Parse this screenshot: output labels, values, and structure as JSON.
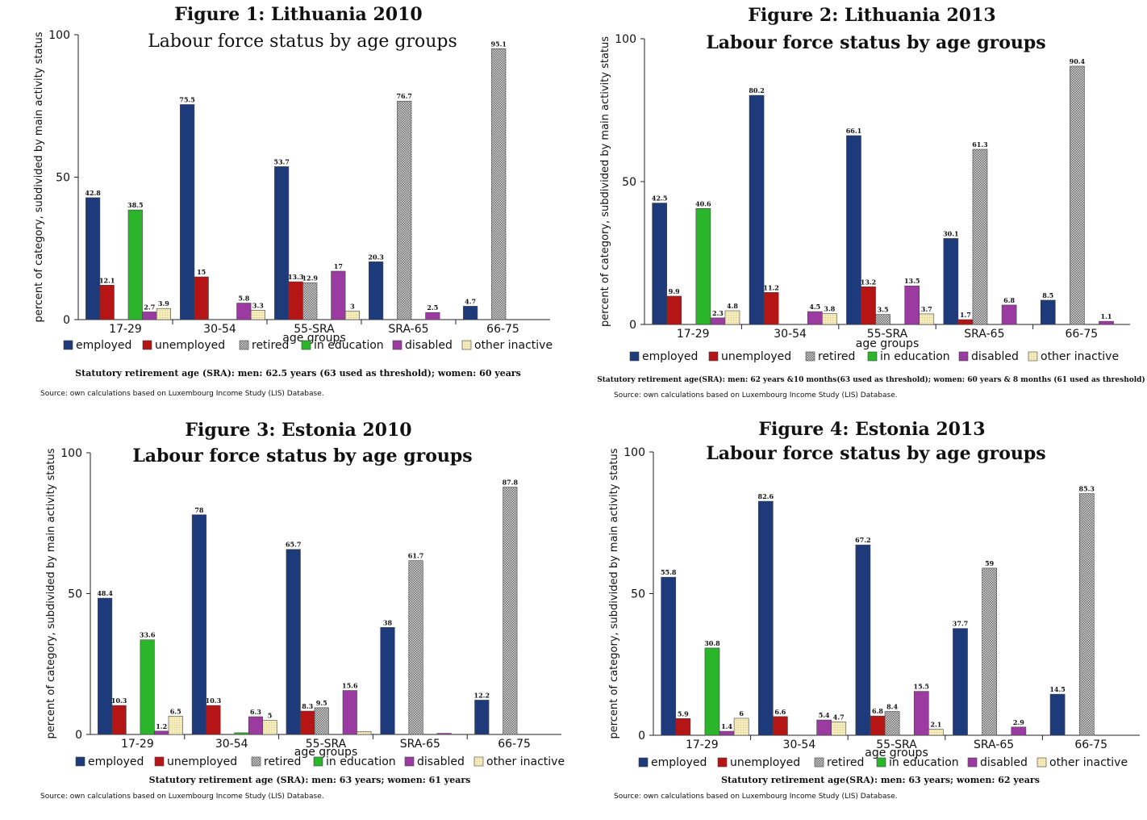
{
  "legend": [
    "employed",
    "unemployed",
    "retired",
    "in education",
    "disabled",
    "other inactive"
  ],
  "colors": [
    "#1d3a7a",
    "#b51515",
    "#9a9a9a",
    "#2bb52b",
    "#9b3aa0",
    "#f3e8b0"
  ],
  "chart_data": [
    {
      "type": "bar",
      "title": "Figure 1: Lithuania 2010",
      "subtitle": "Labour force status by age groups",
      "xlabel": "age groups",
      "ylabel": "percent of category, subdivided by main activity status",
      "ylim": [
        0,
        100
      ],
      "yticks": [
        "0",
        "50",
        "100"
      ],
      "categories": [
        "17-29",
        "30-54",
        "55-SRA",
        "SRA-65",
        "66-75"
      ],
      "series": [
        {
          "name": "employed",
          "values": [
            42.8,
            75.5,
            53.7,
            20.3,
            4.7
          ],
          "labels": [
            "42.8",
            "75.5",
            "53.7",
            "20.3",
            "4.7"
          ]
        },
        {
          "name": "unemployed",
          "values": [
            12.1,
            15,
            13.3,
            0,
            0
          ],
          "labels": [
            "12.1",
            "15",
            "13.3",
            "",
            ""
          ]
        },
        {
          "name": "retired",
          "values": [
            0,
            0,
            12.9,
            76.7,
            95.1
          ],
          "labels": [
            "",
            "",
            "12.9",
            "76.7",
            "95.1"
          ]
        },
        {
          "name": "in education",
          "values": [
            38.5,
            0,
            0,
            0,
            0
          ],
          "labels": [
            "38.5",
            "",
            "",
            "",
            ""
          ]
        },
        {
          "name": "disabled",
          "values": [
            2.7,
            5.8,
            17,
            2.5,
            0
          ],
          "labels": [
            "2.7",
            "5.8",
            "17",
            "2.5",
            ""
          ]
        },
        {
          "name": "other inactive",
          "values": [
            3.9,
            3.3,
            3,
            0,
            0
          ],
          "labels": [
            "3.9",
            "3.3",
            "3",
            "",
            ""
          ]
        }
      ],
      "note": "Statutory retirement age (SRA): men: 62.5 years (63 used as threshold); women: 60 years",
      "source": "Source: own calculations based on Luxembourg Income Study (LIS) Database."
    },
    {
      "type": "bar",
      "title": "Figure 2: Lithuania 2013",
      "subtitle": "Labour force status by age groups",
      "xlabel": "age groups",
      "ylabel": "percent of category, subdivided by main activity status",
      "ylim": [
        0,
        100
      ],
      "yticks": [
        "0",
        "50",
        "100"
      ],
      "categories": [
        "17-29",
        "30-54",
        "55-SRA",
        "SRA-65",
        "66-75"
      ],
      "series": [
        {
          "name": "employed",
          "values": [
            42.5,
            80.2,
            66.1,
            30.1,
            8.5
          ],
          "labels": [
            "42.5",
            "80.2",
            "66.1",
            "30.1",
            "8.5"
          ]
        },
        {
          "name": "unemployed",
          "values": [
            9.9,
            11.2,
            13.2,
            1.7,
            0
          ],
          "labels": [
            "9.9",
            "11.2",
            "13.2",
            "1.7",
            ""
          ]
        },
        {
          "name": "retired",
          "values": [
            0,
            0,
            3.5,
            61.3,
            90.4
          ],
          "labels": [
            "",
            "",
            "3.5",
            "61.3",
            "90.4"
          ]
        },
        {
          "name": "in education",
          "values": [
            40.6,
            0,
            0,
            0,
            0
          ],
          "labels": [
            "40.6",
            "",
            "",
            "",
            ""
          ]
        },
        {
          "name": "disabled",
          "values": [
            2.3,
            4.5,
            13.5,
            6.8,
            1.1
          ],
          "labels": [
            "2.3",
            "4.5",
            "13.5",
            "6.8",
            "1.1"
          ]
        },
        {
          "name": "other inactive",
          "values": [
            4.8,
            3.8,
            3.7,
            0,
            0
          ],
          "labels": [
            "4.8",
            "3.8",
            "3.7",
            "",
            ""
          ]
        }
      ],
      "note": "Statutory retirement age(SRA): men: 62 years &10 months(63 used as threshold); women: 60 years & 8 months (61 used as threshold)",
      "source": "Source: own calculations based on Luxembourg Income Study (LIS) Database."
    },
    {
      "type": "bar",
      "title": "Figure 3: Estonia 2010",
      "subtitle": "Labour force status by age groups",
      "xlabel": "age groups",
      "ylabel": "percent of category, subdivided by main activity status",
      "ylim": [
        0,
        100
      ],
      "yticks": [
        "0",
        "50",
        "100"
      ],
      "categories": [
        "17-29",
        "30-54",
        "55-SRA",
        "SRA-65",
        "66-75"
      ],
      "series": [
        {
          "name": "employed",
          "values": [
            48.4,
            78,
            65.7,
            38,
            12.2
          ],
          "labels": [
            "48.4",
            "78",
            "65.7",
            "38",
            "12.2"
          ]
        },
        {
          "name": "unemployed",
          "values": [
            10.3,
            10.3,
            8.3,
            0,
            0
          ],
          "labels": [
            "10.3",
            "10.3",
            "8.3",
            "",
            ""
          ]
        },
        {
          "name": "retired",
          "values": [
            0,
            0,
            9.5,
            61.7,
            87.8
          ],
          "labels": [
            "",
            "",
            "9.5",
            "61.7",
            "87.8"
          ]
        },
        {
          "name": "in education",
          "values": [
            33.6,
            0.6,
            0,
            0,
            0
          ],
          "labels": [
            "33.6",
            "",
            "",
            "",
            ""
          ]
        },
        {
          "name": "disabled",
          "values": [
            1.2,
            6.3,
            15.6,
            0.4,
            0
          ],
          "labels": [
            "1.2",
            "6.3",
            "15.6",
            "",
            ""
          ]
        },
        {
          "name": "other inactive",
          "values": [
            6.5,
            5,
            1,
            0,
            0
          ],
          "labels": [
            "6.5",
            "5",
            "",
            "",
            ""
          ]
        }
      ],
      "note": "Statutory retirement age (SRA): men: 63 years; women: 61 years",
      "source": "Source: own calculations based on Luxembourg Income Study (LIS) Database."
    },
    {
      "type": "bar",
      "title": "Figure 4: Estonia 2013",
      "subtitle": "Labour force status by age groups",
      "xlabel": "age groups",
      "ylabel": "percent of category, subdivided by main activity status",
      "ylim": [
        0,
        100
      ],
      "yticks": [
        "0",
        "50",
        "100"
      ],
      "categories": [
        "17-29",
        "30-54",
        "55-SRA",
        "SRA-65",
        "66-75"
      ],
      "series": [
        {
          "name": "employed",
          "values": [
            55.8,
            82.6,
            67.2,
            37.7,
            14.5
          ],
          "labels": [
            "55.8",
            "82.6",
            "67.2",
            "37.7",
            "14.5"
          ]
        },
        {
          "name": "unemployed",
          "values": [
            5.9,
            6.6,
            6.8,
            0,
            0
          ],
          "labels": [
            "5.9",
            "6.6",
            "6.8",
            "",
            ""
          ]
        },
        {
          "name": "retired",
          "values": [
            0,
            0,
            8.4,
            59,
            85.3
          ],
          "labels": [
            "",
            "",
            "8.4",
            "59",
            "85.3"
          ]
        },
        {
          "name": "in education",
          "values": [
            30.8,
            0,
            0,
            0,
            0
          ],
          "labels": [
            "30.8",
            "",
            "",
            "",
            ""
          ]
        },
        {
          "name": "disabled",
          "values": [
            1.4,
            5.4,
            15.5,
            2.9,
            0
          ],
          "labels": [
            "1.4",
            "5.4",
            "15.5",
            "2.9",
            ""
          ]
        },
        {
          "name": "other inactive",
          "values": [
            6,
            4.7,
            2.1,
            0,
            0
          ],
          "labels": [
            "6",
            "4.7",
            "2.1",
            "",
            ""
          ]
        }
      ],
      "note": "Statutory retirement age(SRA): men: 63 years; women: 62 years",
      "source": "Source: own calculations based on Luxembourg Income Study (LIS) Database."
    }
  ]
}
